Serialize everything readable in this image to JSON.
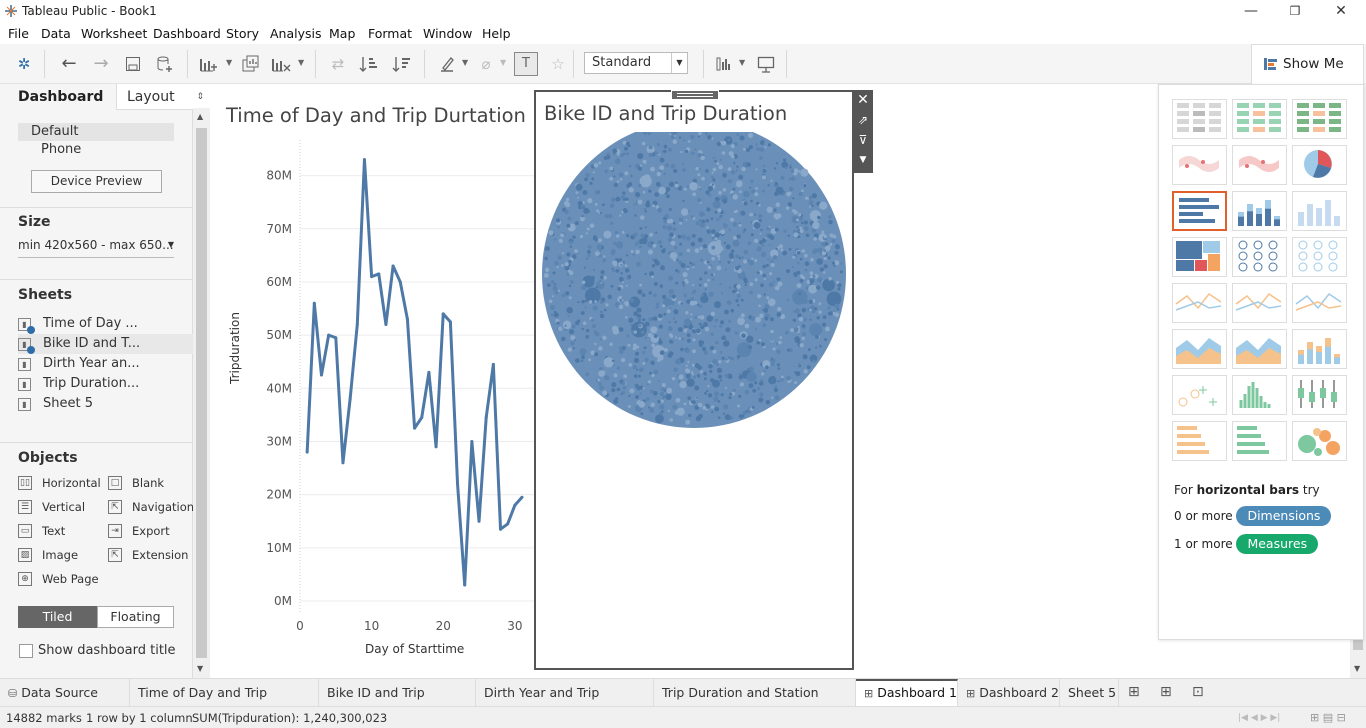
{
  "titlebar": {
    "title": "Tableau Public - Book1",
    "minimize": "—",
    "maximize": "❐",
    "close": "✕"
  },
  "menu": [
    "File",
    "Data",
    "Worksheet",
    "Dashboard",
    "Story",
    "Analysis",
    "Map",
    "Format",
    "Window",
    "Help"
  ],
  "toolbar": {
    "fit_select": "Standard",
    "show_me_label": "Show Me"
  },
  "left_panel": {
    "tab_dashboard": "Dashboard",
    "tab_layout": "Layout",
    "device_default": "Default",
    "device_phone": "Phone",
    "device_preview_button": "Device Preview",
    "size_heading": "Size",
    "size_value": "min 420x560 - max 650...",
    "sheets_heading": "Sheets",
    "sheets": [
      {
        "label": "Time of Day ...",
        "used": true
      },
      {
        "label": "Bike ID and T...",
        "used": true
      },
      {
        "label": "Dirth Year an...",
        "used": false
      },
      {
        "label": "Trip Duration...",
        "used": false
      },
      {
        "label": "Sheet 5",
        "used": false
      }
    ],
    "objects_heading": "Objects",
    "objects": [
      "Horizontal",
      "Blank",
      "Vertical",
      "Navigation",
      "Text",
      "Export",
      "Image",
      "Extension",
      "Web Page"
    ],
    "tiled": "Tiled",
    "floating": "Floating",
    "show_title": "Show dashboard title"
  },
  "line_chart": {
    "title": "Time of Day and Trip Durtation",
    "xlabel": "Day of Starttime",
    "ylabel": "Tripduration",
    "y_ticks": [
      "80M",
      "70M",
      "60M",
      "50M",
      "40M",
      "30M",
      "20M",
      "10M",
      "0M"
    ],
    "x_ticks": [
      "0",
      "10",
      "20",
      "30"
    ]
  },
  "bubble_chart": {
    "title": "Bike ID and Trip Duration"
  },
  "chart_data": [
    {
      "type": "line",
      "title": "Time of Day and Trip Durtation",
      "xlabel": "Day of Starttime",
      "ylabel": "Tripduration",
      "color": "#4e79a7",
      "xlim": [
        0,
        31
      ],
      "ylim": [
        0,
        85000000
      ],
      "x": [
        1,
        2,
        3,
        4,
        5,
        6,
        7,
        8,
        9,
        10,
        11,
        12,
        13,
        14,
        15,
        16,
        17,
        18,
        19,
        20,
        21,
        22,
        23,
        24,
        25,
        26,
        27,
        28,
        29,
        30,
        31
      ],
      "values": [
        28000000,
        56000000,
        42500000,
        50000000,
        49500000,
        26000000,
        38000000,
        52000000,
        83000000,
        61000000,
        61500000,
        52000000,
        63000000,
        60000000,
        53000000,
        32500000,
        34500000,
        43000000,
        29000000,
        54000000,
        52500000,
        22000000,
        3000000,
        30000000,
        15000000,
        34500000,
        44500000,
        13500000,
        14500000,
        18000000,
        19500000
      ]
    },
    {
      "type": "scatter",
      "title": "Bike ID and Trip Duration",
      "color": "#4e79a7",
      "note": "packed bubbles, one per Bike ID"
    }
  ],
  "showme": {
    "hint_prefix": "For",
    "hint_bold": "horizontal bars",
    "hint_suffix": "try",
    "dim_prefix": "0 or more",
    "dim_pill": "Dimensions",
    "mea_prefix": "1 or more",
    "mea_pill": "Measures",
    "dim_color": "#4c8ab8",
    "mea_color": "#17a96b"
  },
  "bottom_tabs": [
    "Data Source",
    "Time of Day and Trip Durtation",
    "Bike ID and Trip Duration",
    "Dirth Year and Trip Duration",
    "Trip Duration and Station Locati...",
    "Dashboard 1",
    "Dashboard 2",
    "Sheet 5"
  ],
  "status": {
    "marks": "14882 marks",
    "rows": "1 row by 1 column",
    "sum": "SUM(Tripduration): 1,240,300,023"
  }
}
